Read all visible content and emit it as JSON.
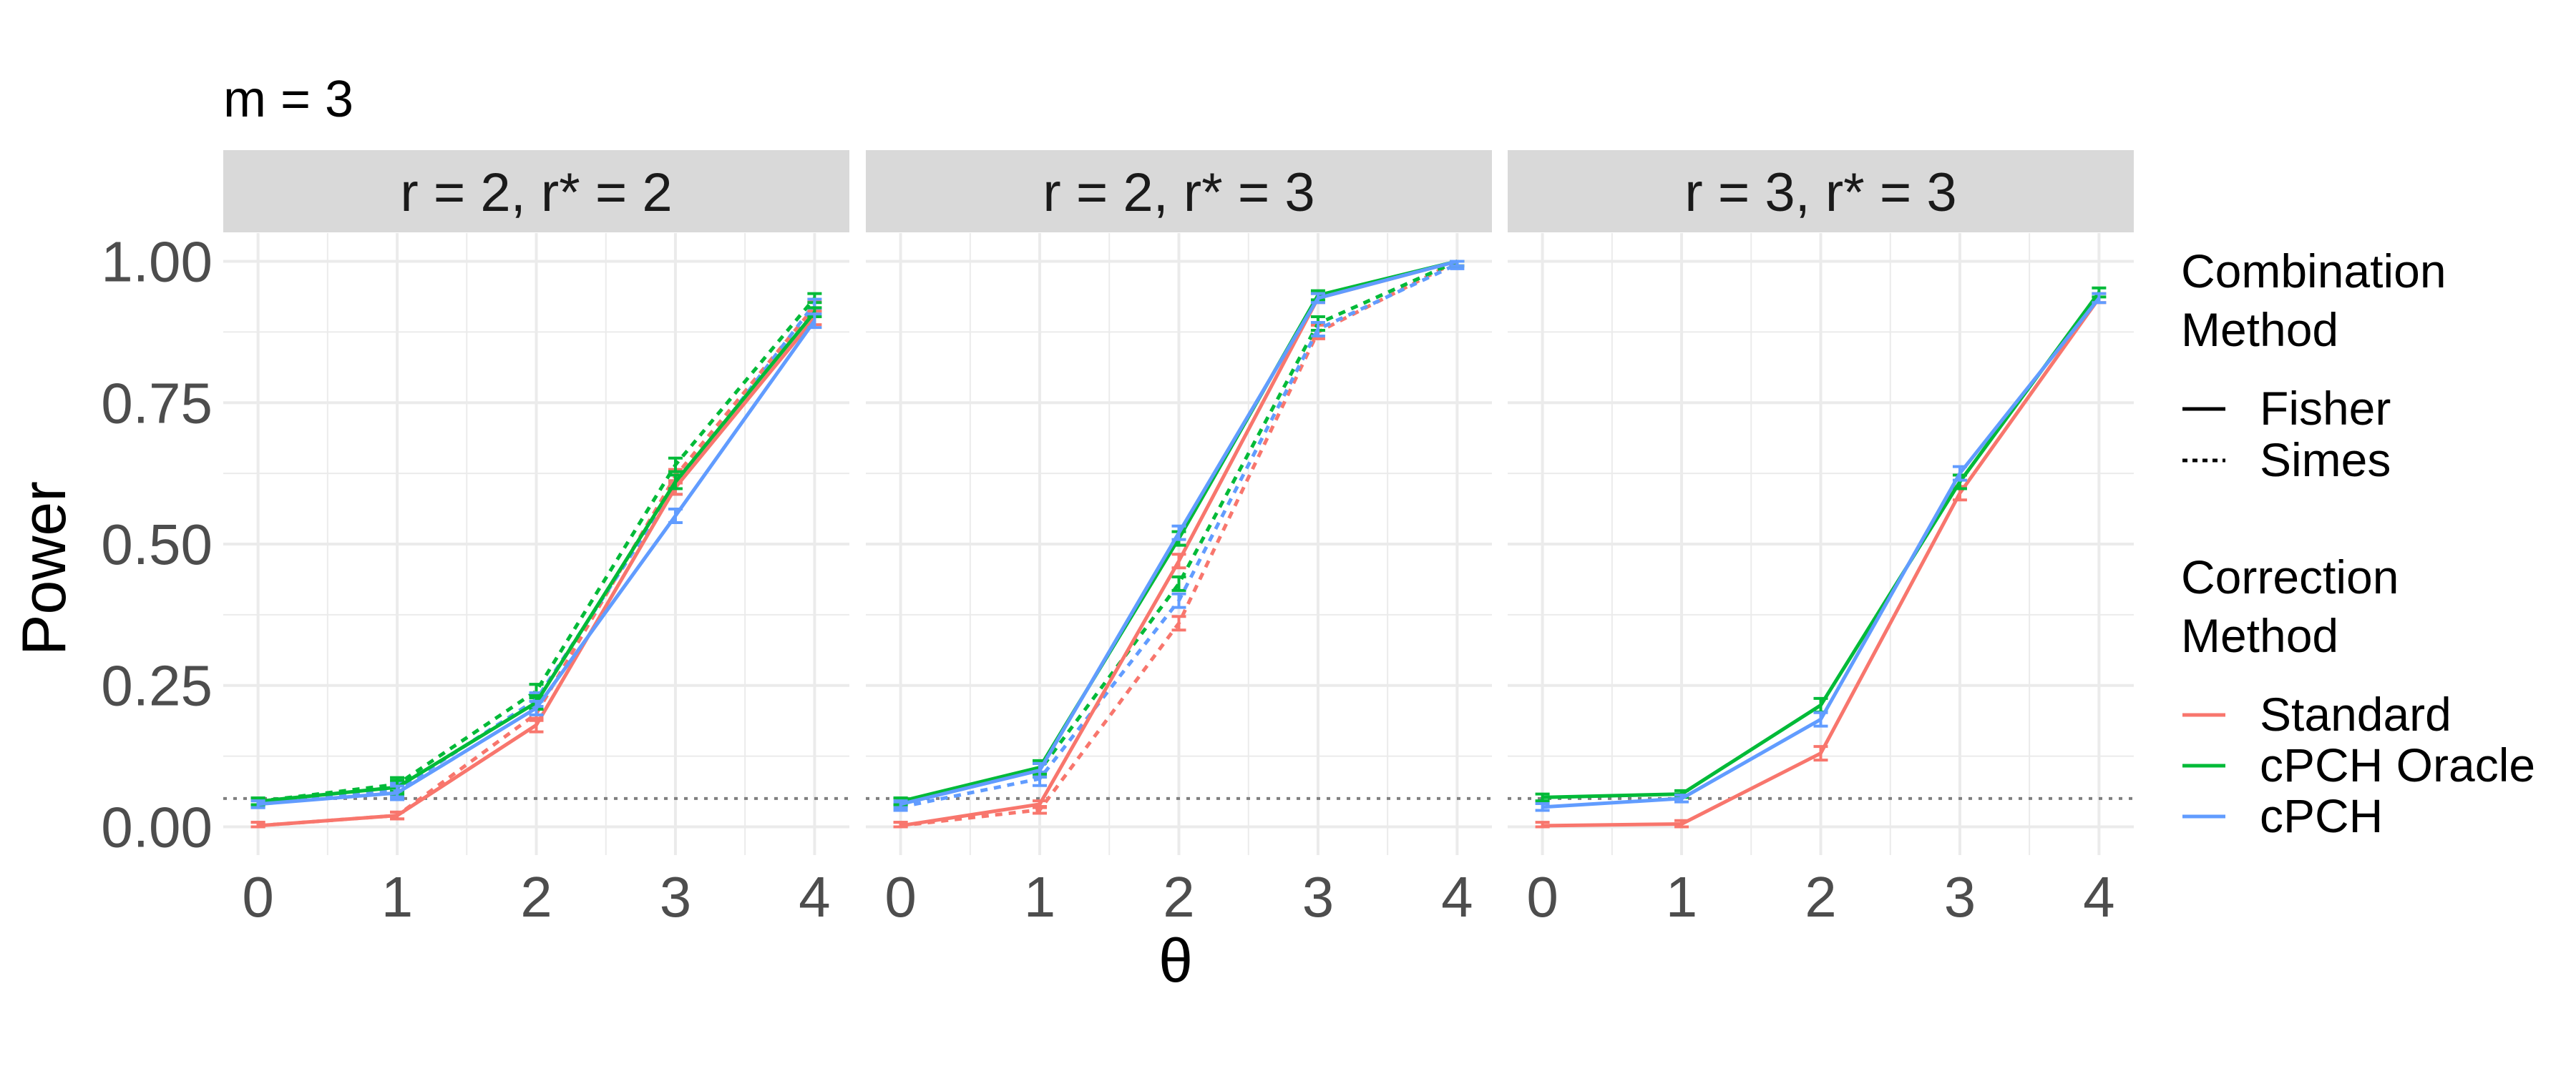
{
  "figure": {
    "title": "m = 3",
    "xlabel": "θ",
    "ylabel": "Power",
    "reference_line_value": 0.05
  },
  "legend": {
    "linetype_title_line1": "Combination",
    "linetype_title_line2": "Method",
    "linetype_entries": [
      {
        "label": "Fisher",
        "dash": "solid"
      },
      {
        "label": "Simes",
        "dash": "dotted"
      }
    ],
    "color_title_line1": "Correction",
    "color_title_line2": "Method",
    "color_entries": [
      {
        "label": "Standard",
        "color": "#F8766D"
      },
      {
        "label": "cPCH Oracle",
        "color": "#00BA38"
      },
      {
        "label": "cPCH",
        "color": "#619CFF"
      }
    ]
  },
  "style": {
    "strip_background": "#D9D9D9",
    "grid_color": "#EBEBEB",
    "axis_text_color": "#4D4D4D",
    "reference_line_color": "#7F7F7F"
  },
  "chart_data": {
    "type": "line",
    "x": [
      0,
      1,
      2,
      3,
      4
    ],
    "xlim": [
      -0.25,
      4.25
    ],
    "ylim": [
      -0.05,
      1.05
    ],
    "y_ticks": [
      0,
      0.25,
      0.5,
      0.75,
      1
    ],
    "y_tick_labels": [
      "0.00",
      "0.25",
      "0.50",
      "0.75",
      "1.00"
    ],
    "x_tick_labels": [
      "0",
      "1",
      "2",
      "3",
      "4"
    ],
    "grid": true,
    "legend_position": "right",
    "panels": [
      {
        "strip": "r = 2, r* = 2",
        "series": [
          {
            "name": "Standard",
            "combination": "Fisher",
            "values": [
              0.002,
              0.02,
              0.18,
              0.6,
              0.9
            ]
          },
          {
            "name": "Standard",
            "combination": "Simes",
            "values": [
              0.002,
              0.02,
              0.2,
              0.62,
              0.92
            ]
          },
          {
            "name": "cPCH Oracle",
            "combination": "Fisher",
            "values": [
              0.045,
              0.07,
              0.22,
              0.61,
              0.91
            ]
          },
          {
            "name": "cPCH Oracle",
            "combination": "Simes",
            "values": [
              0.045,
              0.075,
              0.24,
              0.64,
              0.935
            ]
          },
          {
            "name": "cPCH",
            "combination": "Fisher",
            "values": [
              0.04,
              0.06,
              0.21,
              0.55,
              0.895
            ]
          },
          {
            "name": "cPCH",
            "combination": "Simes",
            "values": [
              0.04,
              0.065,
              0.225,
              0.6,
              0.925
            ]
          }
        ]
      },
      {
        "strip": "r = 2, r* = 3",
        "series": [
          {
            "name": "Standard",
            "combination": "Fisher",
            "values": [
              0.002,
              0.04,
              0.47,
              0.935,
              1.0
            ]
          },
          {
            "name": "Standard",
            "combination": "Simes",
            "values": [
              0.002,
              0.03,
              0.36,
              0.875,
              1.0
            ]
          },
          {
            "name": "cPCH Oracle",
            "combination": "Fisher",
            "values": [
              0.045,
              0.105,
              0.51,
              0.94,
              1.0
            ]
          },
          {
            "name": "cPCH Oracle",
            "combination": "Simes",
            "values": [
              0.045,
              0.1,
              0.43,
              0.89,
              1.0
            ]
          },
          {
            "name": "cPCH",
            "combination": "Fisher",
            "values": [
              0.04,
              0.1,
              0.52,
              0.935,
              1.0
            ]
          },
          {
            "name": "cPCH",
            "combination": "Simes",
            "values": [
              0.035,
              0.085,
              0.4,
              0.88,
              0.995
            ]
          }
        ]
      },
      {
        "strip": "r = 3, r* = 3",
        "series": [
          {
            "name": "Standard",
            "combination": "Fisher",
            "values": [
              0.002,
              0.005,
              0.13,
              0.59,
              0.935
            ]
          },
          {
            "name": "cPCH Oracle",
            "combination": "Fisher",
            "values": [
              0.052,
              0.058,
              0.215,
              0.61,
              0.945
            ]
          },
          {
            "name": "cPCH",
            "combination": "Fisher",
            "values": [
              0.035,
              0.05,
              0.19,
              0.625,
              0.935
            ]
          }
        ]
      }
    ]
  }
}
